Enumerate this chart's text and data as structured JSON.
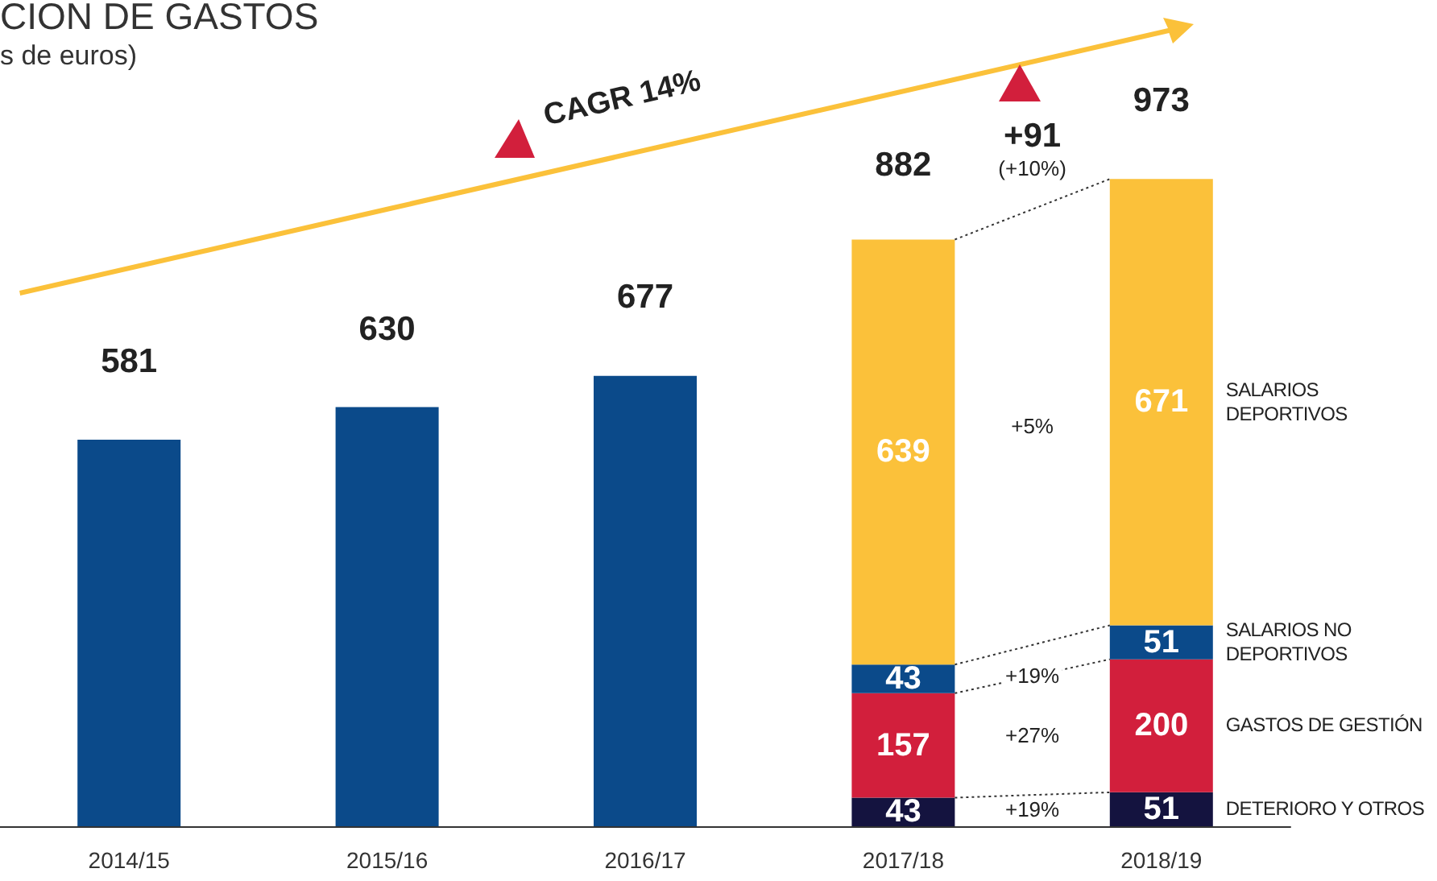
{
  "chart_data": {
    "type": "bar",
    "title": "CION DE GASTOS",
    "subtitle": "s de euros)",
    "stacked": true,
    "legend": false,
    "tick_labels": "x",
    "categories": [
      "2014/15",
      "2015/16",
      "2016/17",
      "2017/18",
      "2018/19"
    ],
    "series": [
      {
        "color": "#0b4a8a",
        "values": [
          581,
          630,
          677,
          null,
          null
        ]
      },
      {
        "name": "DETERIORO Y OTROS",
        "color": "#14133f",
        "values": [
          null,
          null,
          null,
          43,
          51
        ],
        "value_labels": [
          null,
          null,
          null,
          "43",
          "51"
        ]
      },
      {
        "name": "GASTOS DE GESTIÓN",
        "color": "#d21f3c",
        "values": [
          null,
          null,
          null,
          157,
          200
        ],
        "value_labels": [
          null,
          null,
          null,
          "157",
          "200"
        ]
      },
      {
        "name": "SALARIOS NO DEPORTIVOS",
        "color": "#0b4a8a",
        "values": [
          null,
          null,
          null,
          43,
          51
        ],
        "value_labels": [
          null,
          null,
          null,
          "43",
          "51"
        ]
      },
      {
        "name": "SALARIOS DEPORTIVOS",
        "color": "#fbc13a",
        "values": [
          null,
          null,
          null,
          639,
          671
        ],
        "value_labels": [
          null,
          null,
          null,
          "639",
          "671"
        ]
      }
    ],
    "totals": [
      "581",
      "630",
      "677",
      "882",
      "973"
    ],
    "annotations": [
      "CAGR 14%",
      "+91",
      "(+10%)",
      "+19%",
      "+27%",
      "+19%",
      "+5%"
    ]
  }
}
